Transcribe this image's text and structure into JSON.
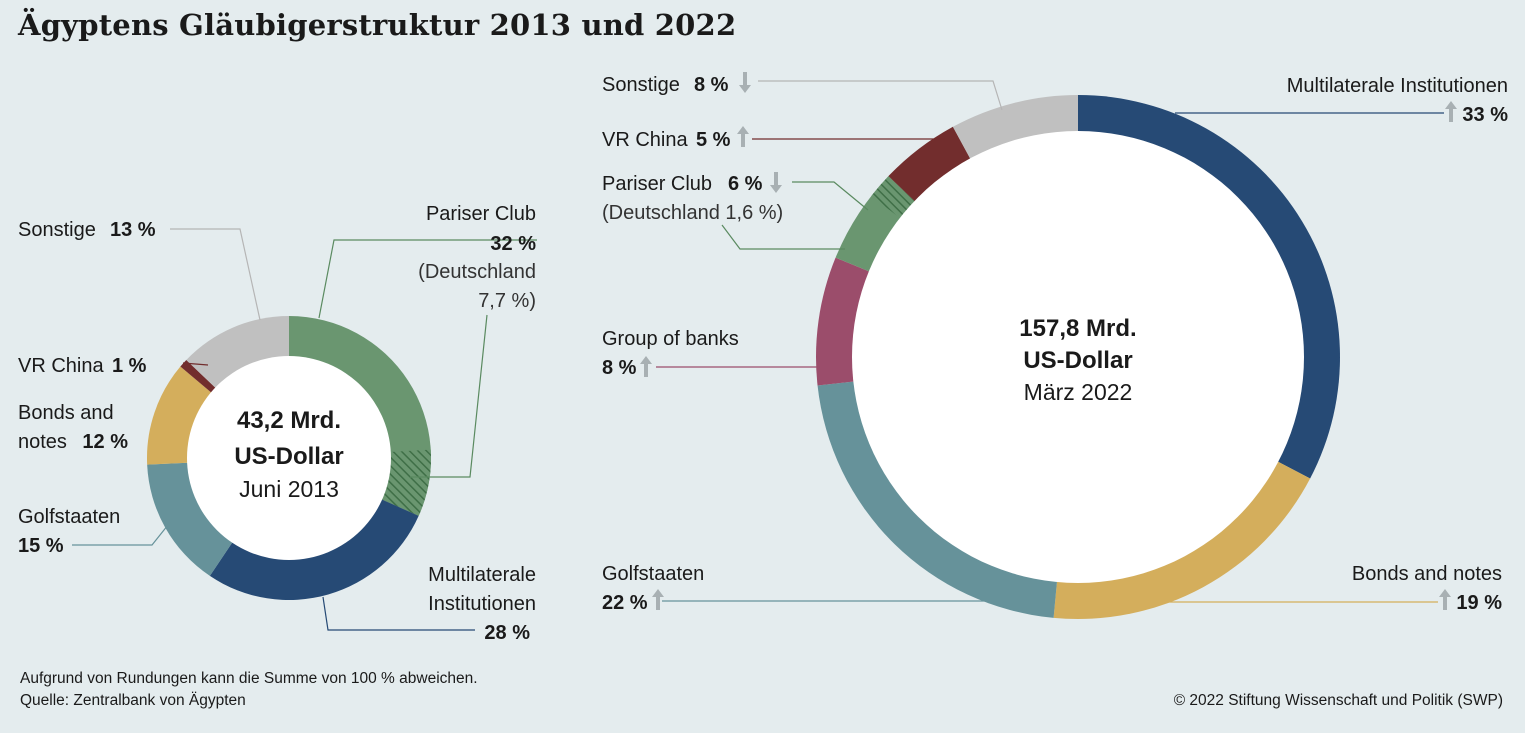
{
  "title": "Ägyptens Gläubigerstruktur 2013 und 2022",
  "colors": {
    "background": "#e4ecee",
    "multilaterale": "#264a75",
    "bonds": "#d4ae5c",
    "golfstaaten": "#66929a",
    "group_of_banks": "#9b4d6b",
    "pariser_club": "#6a9670",
    "vr_china": "#722d2d",
    "sonstige": "#c0c0c0",
    "arrow": "#a8b0b3"
  },
  "chart_data": [
    {
      "type": "pie",
      "variant": "donut",
      "center_lines": [
        "43,2 Mrd.",
        "US-Dollar",
        "Juni 2013"
      ],
      "total": 43.2,
      "unit": "Mrd. US-Dollar",
      "date": "Juni 2013",
      "slices": [
        {
          "key": "pariser_club",
          "label": "Pariser Club",
          "value_label": "32 %",
          "value": 32,
          "sub_label": [
            "(Deutschland",
            "7,7 %)"
          ],
          "sub_value": 7.7
        },
        {
          "key": "multilaterale",
          "label": "Multilaterale Institutionen",
          "value_label": "28 %",
          "value": 28
        },
        {
          "key": "golfstaaten",
          "label": "Golfstaaten",
          "value_label": "15 %",
          "value": 15
        },
        {
          "key": "bonds",
          "label": "Bonds and notes",
          "value_label": "12 %",
          "value": 12
        },
        {
          "key": "vr_china",
          "label": "VR China",
          "value_label": "1 %",
          "value": 1
        },
        {
          "key": "sonstige",
          "label": "Sonstige",
          "value_label": "13 %",
          "value": 13
        }
      ]
    },
    {
      "type": "pie",
      "variant": "donut",
      "center_lines": [
        "157,8 Mrd.",
        "US-Dollar",
        "März 2022"
      ],
      "total": 157.8,
      "unit": "Mrd. US-Dollar",
      "date": "März 2022",
      "slices": [
        {
          "key": "multilaterale",
          "label": "Multilaterale Institutionen",
          "value_label": "33 %",
          "value": 33,
          "trend": "up"
        },
        {
          "key": "bonds",
          "label": "Bonds and notes",
          "value_label": "19 %",
          "value": 19,
          "trend": "up"
        },
        {
          "key": "golfstaaten",
          "label": "Golfstaaten",
          "value_label": "22 %",
          "value": 22,
          "trend": "up"
        },
        {
          "key": "group_of_banks",
          "label": "Group of banks",
          "value_label": "8 %",
          "value": 8,
          "trend": "up"
        },
        {
          "key": "pariser_club",
          "label": "Pariser Club",
          "value_label": "6 %",
          "value": 6,
          "trend": "down",
          "sub_label": [
            "(Deutschland 1,6 %)"
          ],
          "sub_value": 1.6
        },
        {
          "key": "vr_china",
          "label": "VR China",
          "value_label": "5 %",
          "value": 5,
          "trend": "up"
        },
        {
          "key": "sonstige",
          "label": "Sonstige",
          "value_label": "8 %",
          "value": 8,
          "trend": "down"
        }
      ]
    }
  ],
  "footnotes": {
    "rounding": "Aufgrund von Rundungen kann die Summe von 100 % abweichen.",
    "source": "Quelle: Zentralbank von Ägypten",
    "copyright": "© 2022 Stiftung Wissenschaft und Politik (SWP)"
  }
}
